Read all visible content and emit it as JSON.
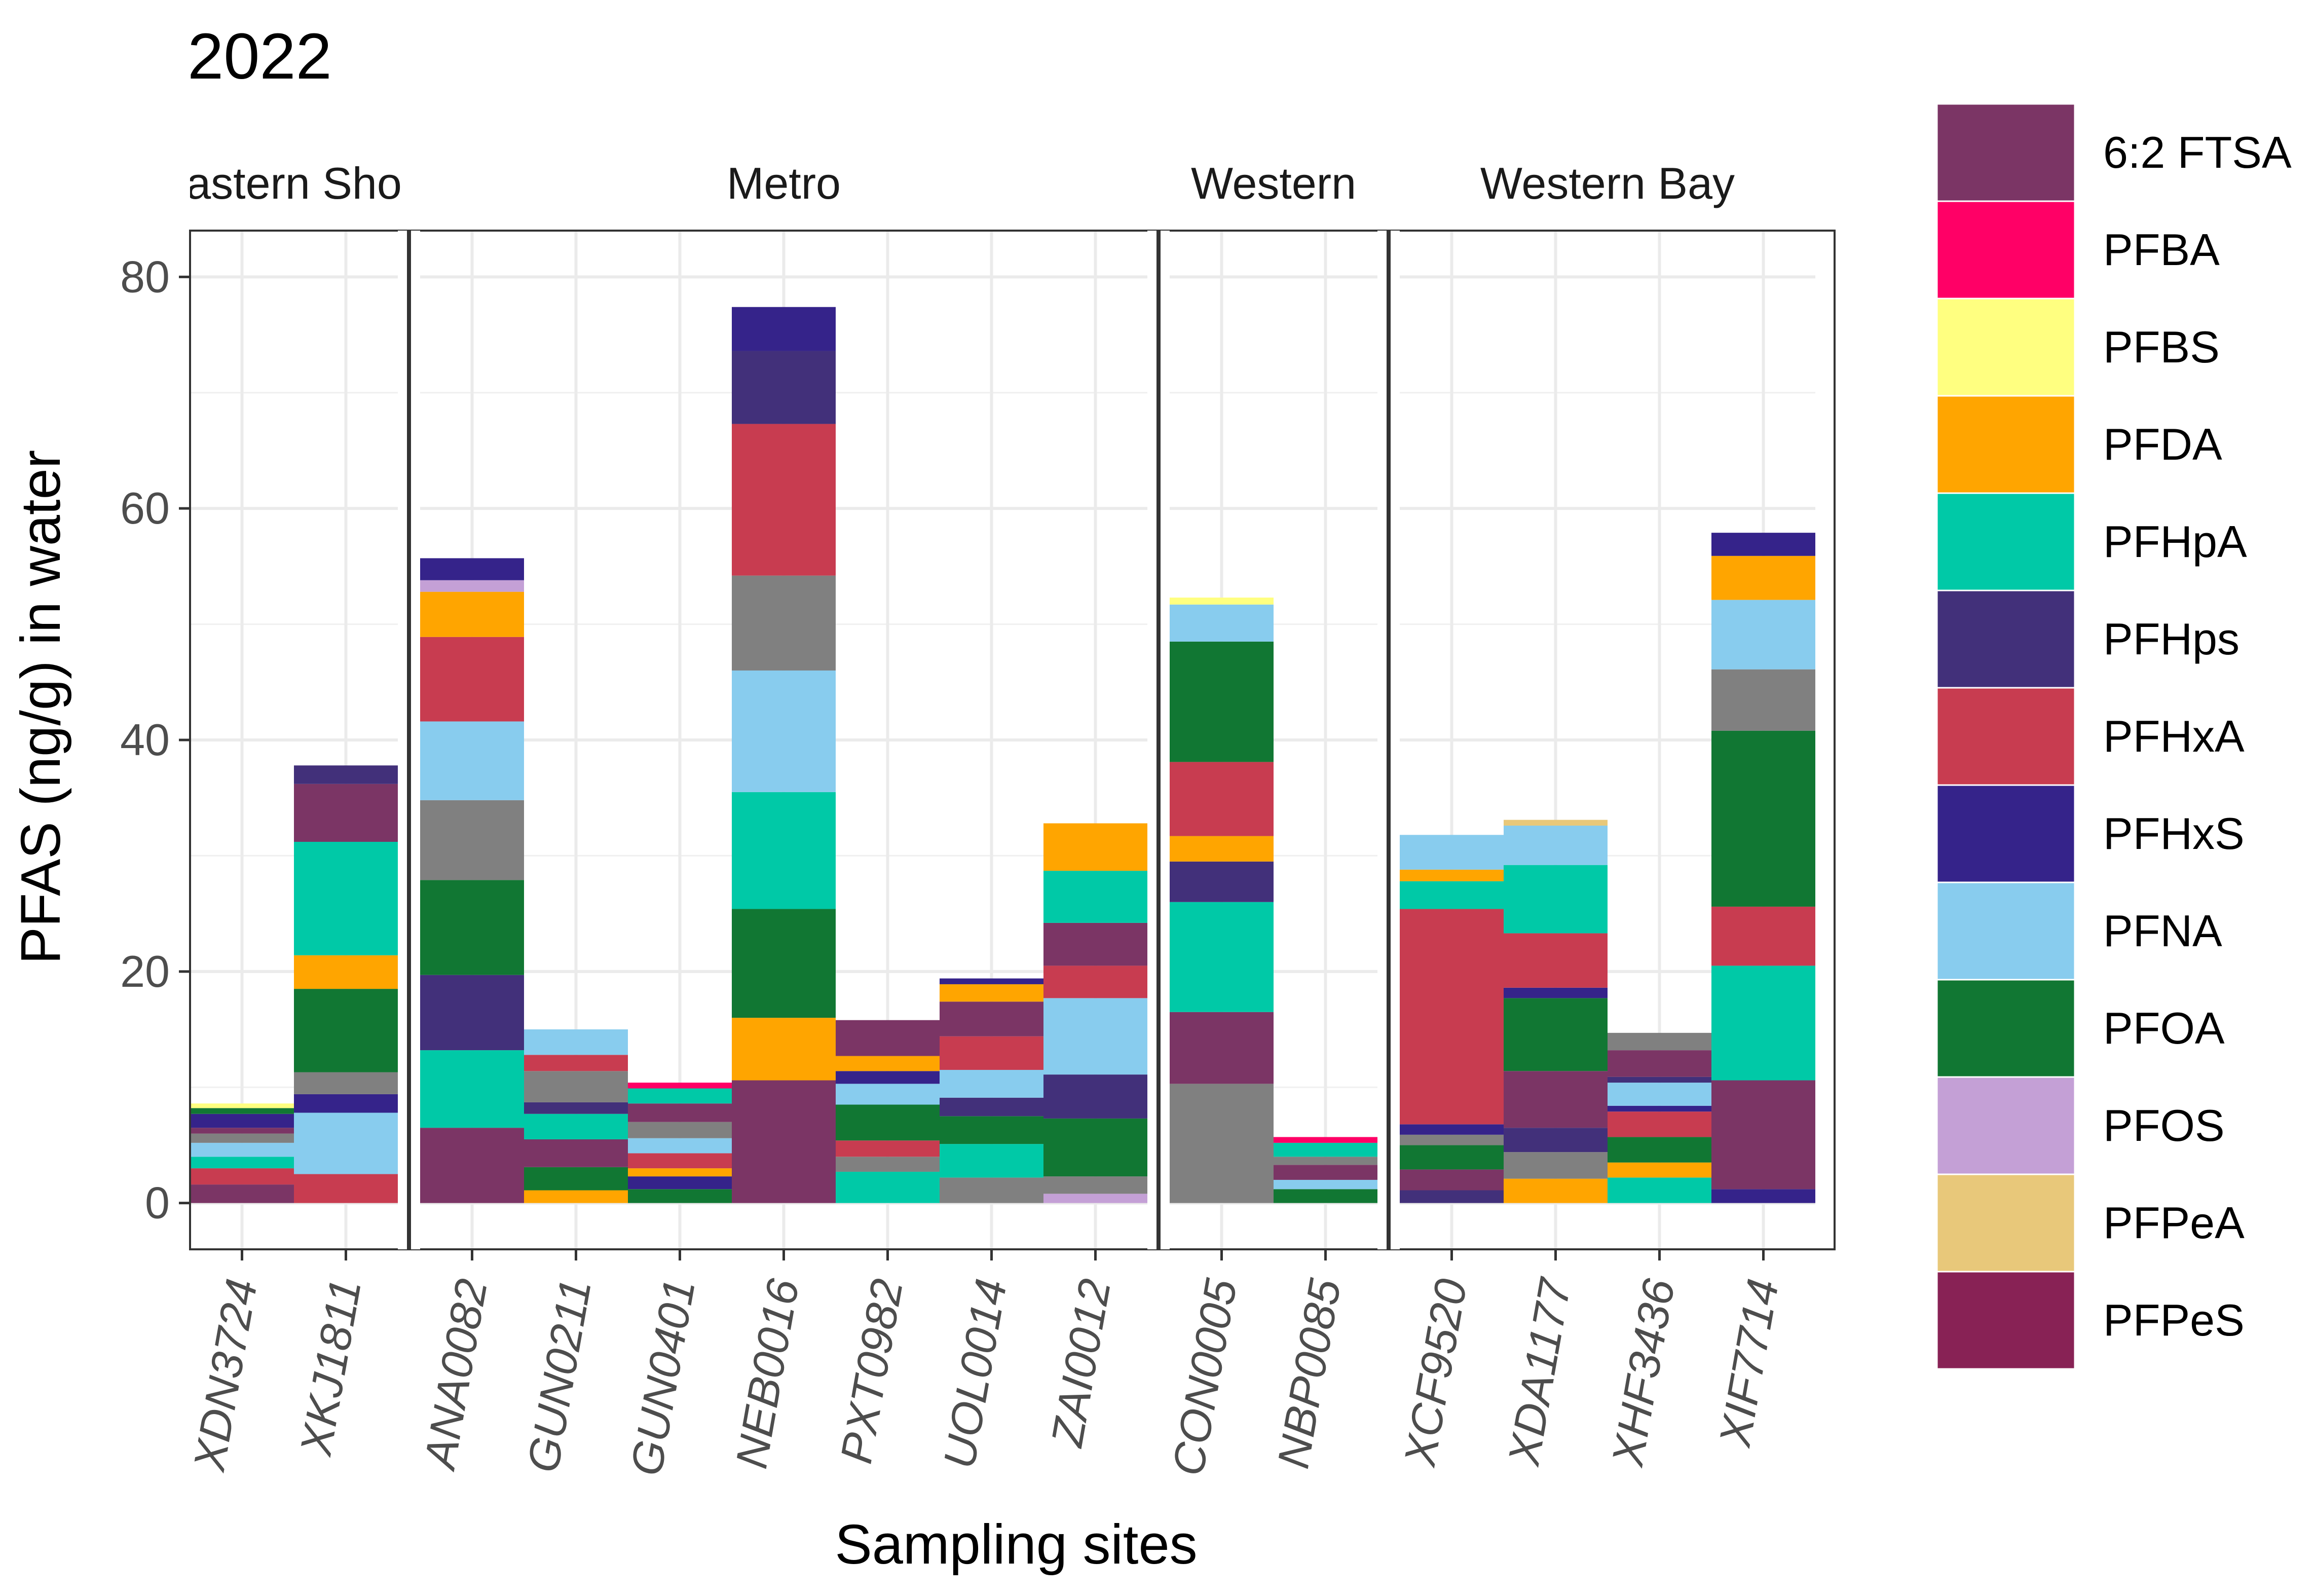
{
  "chart_data": {
    "type": "bar",
    "stacked": true,
    "title": "2022",
    "xlabel": "Sampling sites",
    "ylabel": "PFAS (ng/g) in water",
    "ylim": [
      -4,
      84
    ],
    "yticks": [
      0,
      20,
      40,
      60,
      80
    ],
    "grid": true,
    "legend_position": "right",
    "facets": [
      {
        "label": "astern Sho",
        "sites": [
          "XDN3724",
          "XKJ1811"
        ]
      },
      {
        "label": "Metro",
        "sites": [
          "ANA0082",
          "GUN0211",
          "GUN0401",
          "NEB0016",
          "PXT0982",
          "UOL0014",
          "ZAI0012"
        ]
      },
      {
        "label": "Western",
        "sites": [
          "CON0005",
          "NBP0085"
        ]
      },
      {
        "label": "Western Bay",
        "sites": [
          "XCF9520",
          "XDA1177",
          "XHF3436",
          "XIF7714"
        ]
      }
    ],
    "legend": [
      {
        "name": "6:2 FTSA",
        "color": "#7b3565"
      },
      {
        "name": "PFBA",
        "color": "#ff0066"
      },
      {
        "name": "PFBS",
        "color": "#ffff80"
      },
      {
        "name": "PFDA",
        "color": "#ffa500"
      },
      {
        "name": "PFHpA",
        "color": "#00c9a7"
      },
      {
        "name": "PFHps",
        "color": "#42307a"
      },
      {
        "name": "PFHxA",
        "color": "#c83c50"
      },
      {
        "name": "PFHxS",
        "color": "#35238a"
      },
      {
        "name": "PFNA",
        "color": "#88ccee"
      },
      {
        "name": "PFOA",
        "color": "#117733"
      },
      {
        "name": "PFOS",
        "color": "#c4a0d6"
      },
      {
        "name": "PFPeA",
        "color": "#e8c87a"
      },
      {
        "name": "PFPeS",
        "color": "#882255"
      }
    ],
    "extra_colors": {
      "grey": "#808080"
    },
    "bars": [
      {
        "site": "XDN3724",
        "segments": [
          {
            "color": "#7b3565",
            "value": 1.6
          },
          {
            "color": "#c83c50",
            "value": 1.4
          },
          {
            "color": "#00c9a7",
            "value": 1.0
          },
          {
            "color": "#88ccee",
            "value": 1.2
          },
          {
            "color": "#808080",
            "value": 0.8
          },
          {
            "color": "#7b3565",
            "value": 0.5
          },
          {
            "color": "#35238a",
            "value": 1.2
          },
          {
            "color": "#117733",
            "value": 0.5
          },
          {
            "color": "#ffff80",
            "value": 0.4
          }
        ]
      },
      {
        "site": "XKJ1811",
        "segments": [
          {
            "color": "#c83c50",
            "value": 2.5
          },
          {
            "color": "#88ccee",
            "value": 5.3
          },
          {
            "color": "#35238a",
            "value": 1.6
          },
          {
            "color": "#808080",
            "value": 1.9
          },
          {
            "color": "#117733",
            "value": 7.2
          },
          {
            "color": "#ffa500",
            "value": 2.9
          },
          {
            "color": "#00c9a7",
            "value": 9.8
          },
          {
            "color": "#7b3565",
            "value": 5.0
          },
          {
            "color": "#42307a",
            "value": 1.6
          }
        ]
      },
      {
        "site": "ANA0082",
        "segments": [
          {
            "color": "#7b3565",
            "value": 6.5
          },
          {
            "color": "#00c9a7",
            "value": 6.7
          },
          {
            "color": "#42307a",
            "value": 6.5
          },
          {
            "color": "#117733",
            "value": 8.2
          },
          {
            "color": "#808080",
            "value": 6.9
          },
          {
            "color": "#88ccee",
            "value": 6.8
          },
          {
            "color": "#c83c50",
            "value": 7.3
          },
          {
            "color": "#ffa500",
            "value": 3.9
          },
          {
            "color": "#c4a0d6",
            "value": 1.0
          },
          {
            "color": "#35238a",
            "value": 1.9
          }
        ]
      },
      {
        "site": "GUN0211",
        "segments": [
          {
            "color": "#ffa500",
            "value": 1.1
          },
          {
            "color": "#117733",
            "value": 2.0
          },
          {
            "color": "#7b3565",
            "value": 2.4
          },
          {
            "color": "#00c9a7",
            "value": 2.2
          },
          {
            "color": "#42307a",
            "value": 1.0
          },
          {
            "color": "#808080",
            "value": 2.7
          },
          {
            "color": "#c83c50",
            "value": 1.4
          },
          {
            "color": "#88ccee",
            "value": 2.2
          }
        ]
      },
      {
        "site": "GUN0401",
        "segments": [
          {
            "color": "#117733",
            "value": 1.2
          },
          {
            "color": "#35238a",
            "value": 1.1
          },
          {
            "color": "#ffa500",
            "value": 0.7
          },
          {
            "color": "#c83c50",
            "value": 1.3
          },
          {
            "color": "#88ccee",
            "value": 1.3
          },
          {
            "color": "#808080",
            "value": 1.4
          },
          {
            "color": "#7b3565",
            "value": 1.6
          },
          {
            "color": "#00c9a7",
            "value": 1.3
          },
          {
            "color": "#ff0066",
            "value": 0.5
          }
        ]
      },
      {
        "site": "NEB0016",
        "segments": [
          {
            "color": "#7b3565",
            "value": 10.6
          },
          {
            "color": "#ffa500",
            "value": 5.4
          },
          {
            "color": "#117733",
            "value": 9.4
          },
          {
            "color": "#00c9a7",
            "value": 10.1
          },
          {
            "color": "#88ccee",
            "value": 10.5
          },
          {
            "color": "#808080",
            "value": 8.2
          },
          {
            "color": "#c83c50",
            "value": 13.1
          },
          {
            "color": "#42307a",
            "value": 6.3
          },
          {
            "color": "#35238a",
            "value": 3.8
          }
        ]
      },
      {
        "site": "PXT0982",
        "segments": [
          {
            "color": "#00c9a7",
            "value": 2.7
          },
          {
            "color": "#808080",
            "value": 1.3
          },
          {
            "color": "#c83c50",
            "value": 1.4
          },
          {
            "color": "#117733",
            "value": 3.1
          },
          {
            "color": "#88ccee",
            "value": 1.8
          },
          {
            "color": "#35238a",
            "value": 1.1
          },
          {
            "color": "#ffa500",
            "value": 1.3
          },
          {
            "color": "#7b3565",
            "value": 3.1
          }
        ]
      },
      {
        "site": "UOL0014",
        "segments": [
          {
            "color": "#808080",
            "value": 2.2
          },
          {
            "color": "#00c9a7",
            "value": 2.9
          },
          {
            "color": "#117733",
            "value": 2.4
          },
          {
            "color": "#42307a",
            "value": 1.6
          },
          {
            "color": "#88ccee",
            "value": 2.4
          },
          {
            "color": "#c83c50",
            "value": 2.9
          },
          {
            "color": "#7b3565",
            "value": 3.0
          },
          {
            "color": "#ffa500",
            "value": 1.5
          },
          {
            "color": "#35238a",
            "value": 0.5
          }
        ]
      },
      {
        "site": "ZAI0012",
        "segments": [
          {
            "color": "#c4a0d6",
            "value": 0.8
          },
          {
            "color": "#808080",
            "value": 1.5
          },
          {
            "color": "#117733",
            "value": 5.0
          },
          {
            "color": "#42307a",
            "value": 3.8
          },
          {
            "color": "#88ccee",
            "value": 6.6
          },
          {
            "color": "#c83c50",
            "value": 2.8
          },
          {
            "color": "#7b3565",
            "value": 3.7
          },
          {
            "color": "#00c9a7",
            "value": 4.5
          },
          {
            "color": "#ffa500",
            "value": 4.1
          }
        ]
      },
      {
        "site": "CON0005",
        "segments": [
          {
            "color": "#808080",
            "value": 10.3
          },
          {
            "color": "#7b3565",
            "value": 6.2
          },
          {
            "color": "#00c9a7",
            "value": 9.5
          },
          {
            "color": "#42307a",
            "value": 3.5
          },
          {
            "color": "#ffa500",
            "value": 2.2
          },
          {
            "color": "#c83c50",
            "value": 6.4
          },
          {
            "color": "#117733",
            "value": 10.4
          },
          {
            "color": "#88ccee",
            "value": 3.2
          },
          {
            "color": "#ffff80",
            "value": 0.6
          }
        ]
      },
      {
        "site": "NBP0085",
        "segments": [
          {
            "color": "#117733",
            "value": 1.2
          },
          {
            "color": "#88ccee",
            "value": 0.8
          },
          {
            "color": "#7b3565",
            "value": 1.3
          },
          {
            "color": "#808080",
            "value": 0.7
          },
          {
            "color": "#00c9a7",
            "value": 1.2
          },
          {
            "color": "#ff0066",
            "value": 0.5
          }
        ]
      },
      {
        "site": "XCF9520",
        "segments": [
          {
            "color": "#42307a",
            "value": 1.1
          },
          {
            "color": "#7b3565",
            "value": 1.8
          },
          {
            "color": "#117733",
            "value": 2.1
          },
          {
            "color": "#808080",
            "value": 0.9
          },
          {
            "color": "#35238a",
            "value": 0.9
          },
          {
            "color": "#c83c50",
            "value": 18.6
          },
          {
            "color": "#00c9a7",
            "value": 2.4
          },
          {
            "color": "#ffa500",
            "value": 1.0
          },
          {
            "color": "#88ccee",
            "value": 3.0
          }
        ]
      },
      {
        "site": "XDA1177",
        "segments": [
          {
            "color": "#ffa500",
            "value": 2.1
          },
          {
            "color": "#808080",
            "value": 2.3
          },
          {
            "color": "#42307a",
            "value": 2.1
          },
          {
            "color": "#7b3565",
            "value": 4.9
          },
          {
            "color": "#117733",
            "value": 6.3
          },
          {
            "color": "#35238a",
            "value": 0.9
          },
          {
            "color": "#c83c50",
            "value": 4.7
          },
          {
            "color": "#00c9a7",
            "value": 5.9
          },
          {
            "color": "#88ccee",
            "value": 3.4
          },
          {
            "color": "#e8c87a",
            "value": 0.5
          }
        ]
      },
      {
        "site": "XHF3436",
        "segments": [
          {
            "color": "#00c9a7",
            "value": 2.2
          },
          {
            "color": "#ffa500",
            "value": 1.3
          },
          {
            "color": "#117733",
            "value": 2.2
          },
          {
            "color": "#c83c50",
            "value": 2.2
          },
          {
            "color": "#35238a",
            "value": 0.5
          },
          {
            "color": "#88ccee",
            "value": 2.0
          },
          {
            "color": "#42307a",
            "value": 0.5
          },
          {
            "color": "#7b3565",
            "value": 2.3
          },
          {
            "color": "#808080",
            "value": 1.5
          }
        ]
      },
      {
        "site": "XIF7714",
        "segments": [
          {
            "color": "#35238a",
            "value": 1.2
          },
          {
            "color": "#7b3565",
            "value": 9.4
          },
          {
            "color": "#00c9a7",
            "value": 9.9
          },
          {
            "color": "#c83c50",
            "value": 5.1
          },
          {
            "color": "#117733",
            "value": 15.2
          },
          {
            "color": "#808080",
            "value": 5.3
          },
          {
            "color": "#88ccee",
            "value": 6.0
          },
          {
            "color": "#ffa500",
            "value": 3.8
          },
          {
            "color": "#35238a",
            "value": 2.0
          }
        ]
      }
    ]
  }
}
